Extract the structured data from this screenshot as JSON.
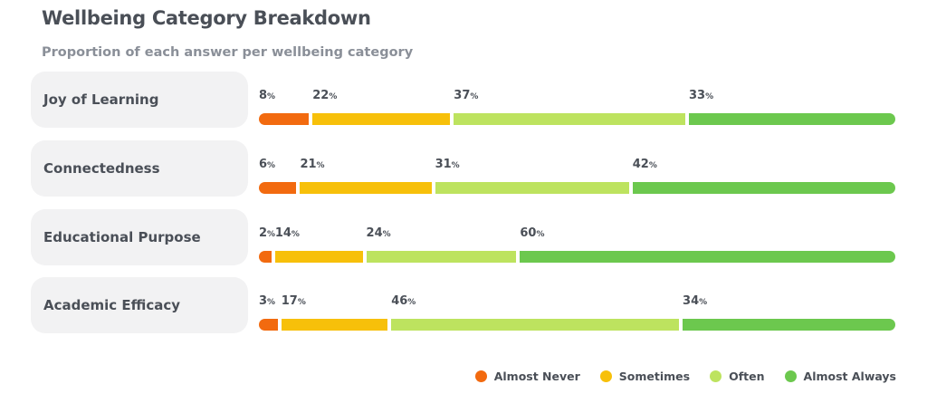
{
  "title": "Wellbeing Category Breakdown",
  "subtitle": "Proportion of each answer per wellbeing category",
  "chart_data": {
    "type": "bar",
    "stacked": true,
    "orientation": "horizontal",
    "unit": "%",
    "categories": [
      "Joy of Learning",
      "Connectedness",
      "Educational Purpose",
      "Academic Efficacy"
    ],
    "series": [
      {
        "name": "Almost Never",
        "color": "#f26a0f",
        "values": [
          8,
          6,
          2,
          3
        ]
      },
      {
        "name": "Sometimes",
        "color": "#f7c00a",
        "values": [
          22,
          21,
          14,
          17
        ]
      },
      {
        "name": "Often",
        "color": "#bde35f",
        "values": [
          37,
          31,
          24,
          46
        ]
      },
      {
        "name": "Almost Always",
        "color": "#6cc84e",
        "values": [
          33,
          42,
          60,
          34
        ]
      }
    ],
    "legend_position": "bottom-right"
  }
}
